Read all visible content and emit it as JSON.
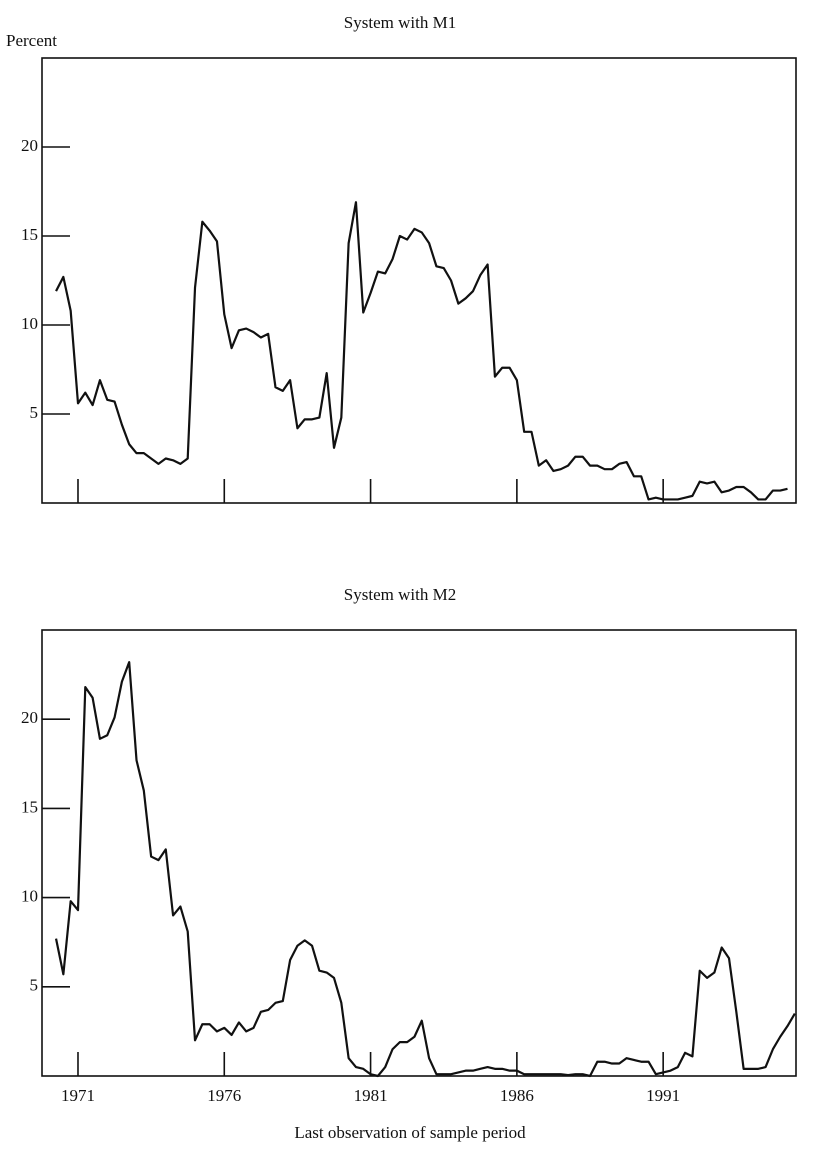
{
  "chart_data": [
    {
      "type": "line",
      "title": "System with M1",
      "ylabel": "Percent",
      "color": "#111111",
      "xtick_labels": false,
      "xlim": [
        1969.77,
        1995.54
      ],
      "ylim": [
        0,
        25
      ],
      "xticks": [
        1971,
        1976,
        1981,
        1986,
        1991
      ],
      "yticks": [
        5,
        10,
        15,
        20
      ],
      "x": [
        1970.25,
        1970.5,
        1970.75,
        1971,
        1971.25,
        1971.5,
        1971.75,
        1972,
        1972.25,
        1972.5,
        1972.75,
        1973,
        1973.25,
        1973.5,
        1973.75,
        1974,
        1974.25,
        1974.5,
        1974.75,
        1975,
        1975.25,
        1975.5,
        1975.75,
        1976,
        1976.25,
        1976.5,
        1976.75,
        1977,
        1977.25,
        1977.5,
        1977.75,
        1978,
        1978.25,
        1978.5,
        1978.75,
        1979,
        1979.25,
        1979.5,
        1979.75,
        1980,
        1980.25,
        1980.5,
        1980.75,
        1981,
        1981.25,
        1981.5,
        1981.75,
        1982,
        1982.25,
        1982.5,
        1982.75,
        1983,
        1983.25,
        1983.5,
        1983.75,
        1984,
        1984.25,
        1984.5,
        1984.75,
        1985,
        1985.25,
        1985.5,
        1985.75,
        1986,
        1986.25,
        1986.5,
        1986.75,
        1987,
        1987.25,
        1987.5,
        1987.75,
        1988,
        1988.25,
        1988.5,
        1988.75,
        1989,
        1989.25,
        1989.5,
        1989.75,
        1990,
        1990.25,
        1990.5,
        1990.75,
        1991,
        1991.25,
        1991.5,
        1991.75,
        1992,
        1992.25,
        1992.5,
        1992.75,
        1993,
        1993.25,
        1993.5,
        1993.75,
        1994,
        1994.25,
        1994.5,
        1994.75,
        1995,
        1995.25
      ],
      "values": [
        11.9,
        12.7,
        10.8,
        5.6,
        6.2,
        5.5,
        6.9,
        5.8,
        5.7,
        4.4,
        3.3,
        2.8,
        2.8,
        2.5,
        2.2,
        2.5,
        2.4,
        2.2,
        2.5,
        12.1,
        15.8,
        15.3,
        14.7,
        10.6,
        8.7,
        9.7,
        9.8,
        9.6,
        9.3,
        9.5,
        6.5,
        6.3,
        6.9,
        4.2,
        4.7,
        4.7,
        4.8,
        7.3,
        3.1,
        4.8,
        14.6,
        16.9,
        10.7,
        11.8,
        13.0,
        12.9,
        13.7,
        15.0,
        14.8,
        15.4,
        15.2,
        14.6,
        13.3,
        13.2,
        12.5,
        11.2,
        11.5,
        11.9,
        12.8,
        13.4,
        7.1,
        7.6,
        7.6,
        6.9,
        4.0,
        4.0,
        2.1,
        2.4,
        1.8,
        1.9,
        2.1,
        2.6,
        2.6,
        2.1,
        2.1,
        1.9,
        1.9,
        2.2,
        2.3,
        1.5,
        1.5,
        0.2,
        0.3,
        0.2,
        0.2,
        0.2,
        0.3,
        0.4,
        1.2,
        1.1,
        1.2,
        0.6,
        0.7,
        0.9,
        0.9,
        0.6,
        0.2,
        0.2,
        0.7,
        0.7,
        0.8
      ]
    },
    {
      "type": "line",
      "title": "System with M2",
      "xlabel": "Last observation of sample period",
      "color": "#111111",
      "xtick_labels": true,
      "xlim": [
        1969.77,
        1995.54
      ],
      "ylim": [
        0,
        25
      ],
      "xticks": [
        1971,
        1976,
        1981,
        1986,
        1991
      ],
      "yticks": [
        5,
        10,
        15,
        20
      ],
      "x": [
        1970.25,
        1970.5,
        1970.75,
        1971,
        1971.25,
        1971.5,
        1971.75,
        1972,
        1972.25,
        1972.5,
        1972.75,
        1973,
        1973.25,
        1973.5,
        1973.75,
        1974,
        1974.25,
        1974.5,
        1974.75,
        1975,
        1975.25,
        1975.5,
        1975.75,
        1976,
        1976.25,
        1976.5,
        1976.75,
        1977,
        1977.25,
        1977.5,
        1977.75,
        1978,
        1978.25,
        1978.5,
        1978.75,
        1979,
        1979.25,
        1979.5,
        1979.75,
        1980,
        1980.25,
        1980.5,
        1980.75,
        1981,
        1981.25,
        1981.5,
        1981.75,
        1982,
        1982.25,
        1982.5,
        1982.75,
        1983,
        1983.25,
        1983.5,
        1983.75,
        1984,
        1984.25,
        1984.5,
        1984.75,
        1985,
        1985.25,
        1985.5,
        1985.75,
        1986,
        1986.25,
        1986.5,
        1986.75,
        1987,
        1987.25,
        1987.5,
        1987.75,
        1988,
        1988.25,
        1988.5,
        1988.75,
        1989,
        1989.25,
        1989.5,
        1989.75,
        1990,
        1990.25,
        1990.5,
        1990.75,
        1991,
        1991.25,
        1991.5,
        1991.75,
        1992,
        1992.25,
        1992.5,
        1992.75,
        1993,
        1993.25,
        1993.5,
        1993.75,
        1994,
        1994.25,
        1994.5,
        1994.75,
        1995,
        1995.25,
        1995.5
      ],
      "values": [
        7.7,
        5.7,
        9.8,
        9.3,
        21.8,
        21.2,
        18.9,
        19.1,
        20.1,
        22.1,
        23.2,
        17.7,
        16.0,
        12.3,
        12.1,
        12.7,
        9.0,
        9.5,
        8.1,
        2.0,
        2.9,
        2.9,
        2.5,
        2.7,
        2.3,
        3.0,
        2.5,
        2.7,
        3.6,
        3.7,
        4.1,
        4.2,
        6.5,
        7.3,
        7.6,
        7.3,
        5.9,
        5.8,
        5.5,
        4.1,
        1.0,
        0.5,
        0.4,
        0.1,
        0.0,
        0.5,
        1.5,
        1.9,
        1.9,
        2.2,
        3.1,
        1.0,
        0.1,
        0.1,
        0.1,
        0.2,
        0.3,
        0.3,
        0.4,
        0.5,
        0.4,
        0.4,
        0.3,
        0.3,
        0.1,
        0.1,
        0.1,
        0.1,
        0.1,
        0.1,
        0.05,
        0.1,
        0.1,
        0.0,
        0.8,
        0.8,
        0.7,
        0.7,
        1.0,
        0.9,
        0.8,
        0.8,
        0.1,
        0.2,
        0.3,
        0.5,
        1.3,
        1.1,
        5.9,
        5.5,
        5.8,
        7.2,
        6.6,
        3.6,
        0.4,
        0.4,
        0.4,
        0.5,
        1.5,
        2.2,
        2.8,
        3.5
      ]
    }
  ]
}
